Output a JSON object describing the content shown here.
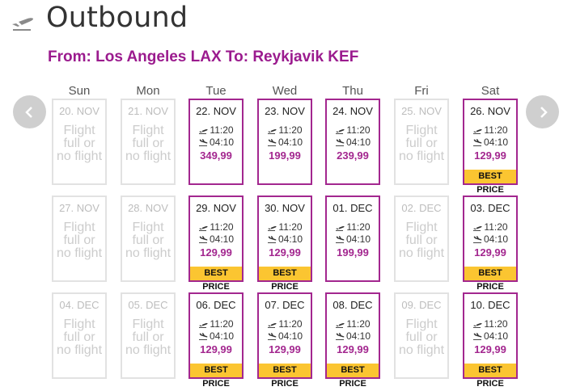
{
  "header": {
    "title": "Outbound",
    "route": "From: Los Angeles LAX To: Reykjavik KEF",
    "icon": "plane-takeoff-icon"
  },
  "days_of_week": [
    "Sun",
    "Mon",
    "Tue",
    "Wed",
    "Thu",
    "Fri",
    "Sat"
  ],
  "unavailable_text": "Flight\nfull or\nno flight",
  "best_price_label": "BEST PRICE",
  "weeks": [
    [
      {
        "date": "20. NOV",
        "available": false
      },
      {
        "date": "21. NOV",
        "available": false
      },
      {
        "date": "22. NOV",
        "available": true,
        "depart": "11:20",
        "arrive": "04:10",
        "price": "349,99",
        "best": false
      },
      {
        "date": "23. NOV",
        "available": true,
        "depart": "11:20",
        "arrive": "04:10",
        "price": "199,99",
        "best": false
      },
      {
        "date": "24. NOV",
        "available": true,
        "depart": "11:20",
        "arrive": "04:10",
        "price": "239,99",
        "best": false
      },
      {
        "date": "25. NOV",
        "available": false
      },
      {
        "date": "26. NOV",
        "available": true,
        "depart": "11:20",
        "arrive": "04:10",
        "price": "129,99",
        "best": true
      }
    ],
    [
      {
        "date": "27. NOV",
        "available": false
      },
      {
        "date": "28. NOV",
        "available": false
      },
      {
        "date": "29. NOV",
        "available": true,
        "depart": "11:20",
        "arrive": "04:10",
        "price": "129,99",
        "best": true
      },
      {
        "date": "30. NOV",
        "available": true,
        "depart": "11:20",
        "arrive": "04:10",
        "price": "129,99",
        "best": true
      },
      {
        "date": "01. DEC",
        "available": true,
        "depart": "11:20",
        "arrive": "04:10",
        "price": "199,99",
        "best": false
      },
      {
        "date": "02. DEC",
        "available": false
      },
      {
        "date": "03. DEC",
        "available": true,
        "depart": "11:20",
        "arrive": "04:10",
        "price": "129,99",
        "best": true
      }
    ],
    [
      {
        "date": "04. DEC",
        "available": false
      },
      {
        "date": "05. DEC",
        "available": false
      },
      {
        "date": "06. DEC",
        "available": true,
        "depart": "11:20",
        "arrive": "04:10",
        "price": "129,99",
        "best": true
      },
      {
        "date": "07. DEC",
        "available": true,
        "depart": "11:20",
        "arrive": "04:10",
        "price": "129,99",
        "best": true
      },
      {
        "date": "08. DEC",
        "available": true,
        "depart": "11:20",
        "arrive": "04:10",
        "price": "129,99",
        "best": true
      },
      {
        "date": "09. DEC",
        "available": false
      },
      {
        "date": "10. DEC",
        "available": true,
        "depart": "11:20",
        "arrive": "04:10",
        "price": "129,99",
        "best": true
      }
    ]
  ],
  "nav": {
    "prev_icon": "chevron-left-icon",
    "next_icon": "chevron-right-icon"
  }
}
